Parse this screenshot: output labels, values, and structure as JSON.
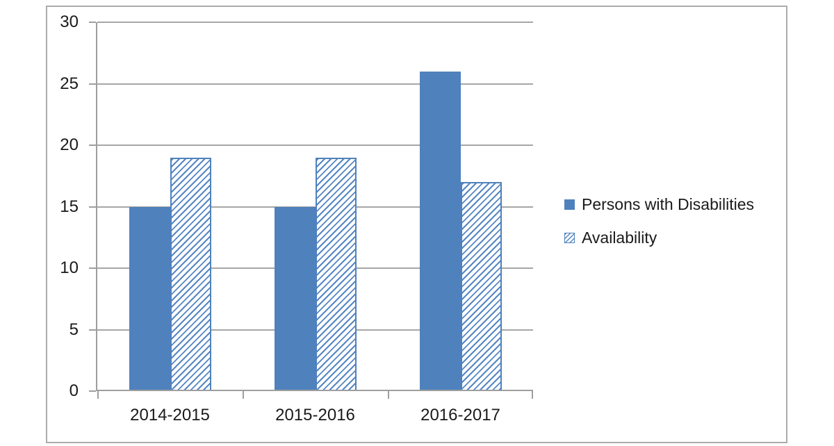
{
  "chart_data": {
    "type": "bar",
    "title": "",
    "categories": [
      "2014-2015",
      "2015-2016",
      "2016-2017"
    ],
    "series": [
      {
        "name": "Persons with Disabilities",
        "fill": "solid",
        "color": "#4F81BD",
        "values": [
          15,
          15,
          26
        ]
      },
      {
        "name": "Availability",
        "fill": "hatch",
        "color": "#4F81BD",
        "values": [
          19,
          19,
          17
        ]
      }
    ],
    "xlabel": "",
    "ylabel": "",
    "ylim": [
      0,
      30
    ],
    "yticks": [
      0,
      5,
      10,
      15,
      20,
      25,
      30
    ],
    "grid": true,
    "legend_position": "right-middle"
  },
  "colors": {
    "bar_blue": "#4F81BD",
    "hatch_stripe": "#5586C3",
    "gridline": "#A6A6A6",
    "axis": "#9E9E9E",
    "frame_border": "#ABABAB",
    "text": "#1A1A1A",
    "background": "#FFFFFF"
  }
}
